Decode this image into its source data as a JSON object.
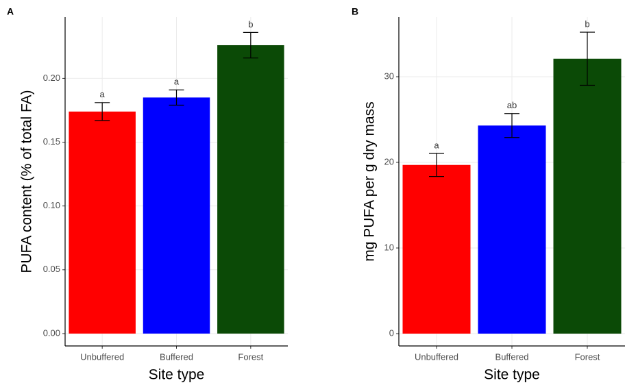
{
  "chart_data": [
    {
      "type": "bar",
      "panel": "A",
      "ylabel": "PUFA content (% of total FA)",
      "xlabel": "Site type",
      "categories": [
        "Unbuffered",
        "Buffered",
        "Forest"
      ],
      "colors": [
        "#ff0000",
        "#0000ff",
        "#0b4a06"
      ],
      "values": [
        0.174,
        0.185,
        0.226
      ],
      "errors": [
        0.007,
        0.006,
        0.01
      ],
      "annotations": [
        "a",
        "a",
        "b"
      ],
      "ylim": [
        -0.0097,
        0.248
      ],
      "yticks": [
        {
          "value": 0,
          "label": "0.00"
        },
        {
          "value": 0.05,
          "label": "0.05"
        },
        {
          "value": 0.1,
          "label": "0.10"
        },
        {
          "value": 0.15,
          "label": "0.15"
        },
        {
          "value": 0.2,
          "label": "0.20"
        }
      ],
      "grid": true
    },
    {
      "type": "bar",
      "panel": "B",
      "ylabel": "mg PUFA per g dry mass",
      "xlabel": "Site type",
      "categories": [
        "Unbuffered",
        "Buffered",
        "Forest"
      ],
      "colors": [
        "#ff0000",
        "#0000ff",
        "#0b4a06"
      ],
      "values": [
        19.7,
        24.3,
        32.1
      ],
      "errors": [
        1.35,
        1.4,
        3.1
      ],
      "annotations": [
        "a",
        "ab",
        "b"
      ],
      "ylim": [
        -1.44,
        36.96
      ],
      "yticks": [
        0,
        10,
        20,
        30
      ],
      "grid": true
    }
  ]
}
